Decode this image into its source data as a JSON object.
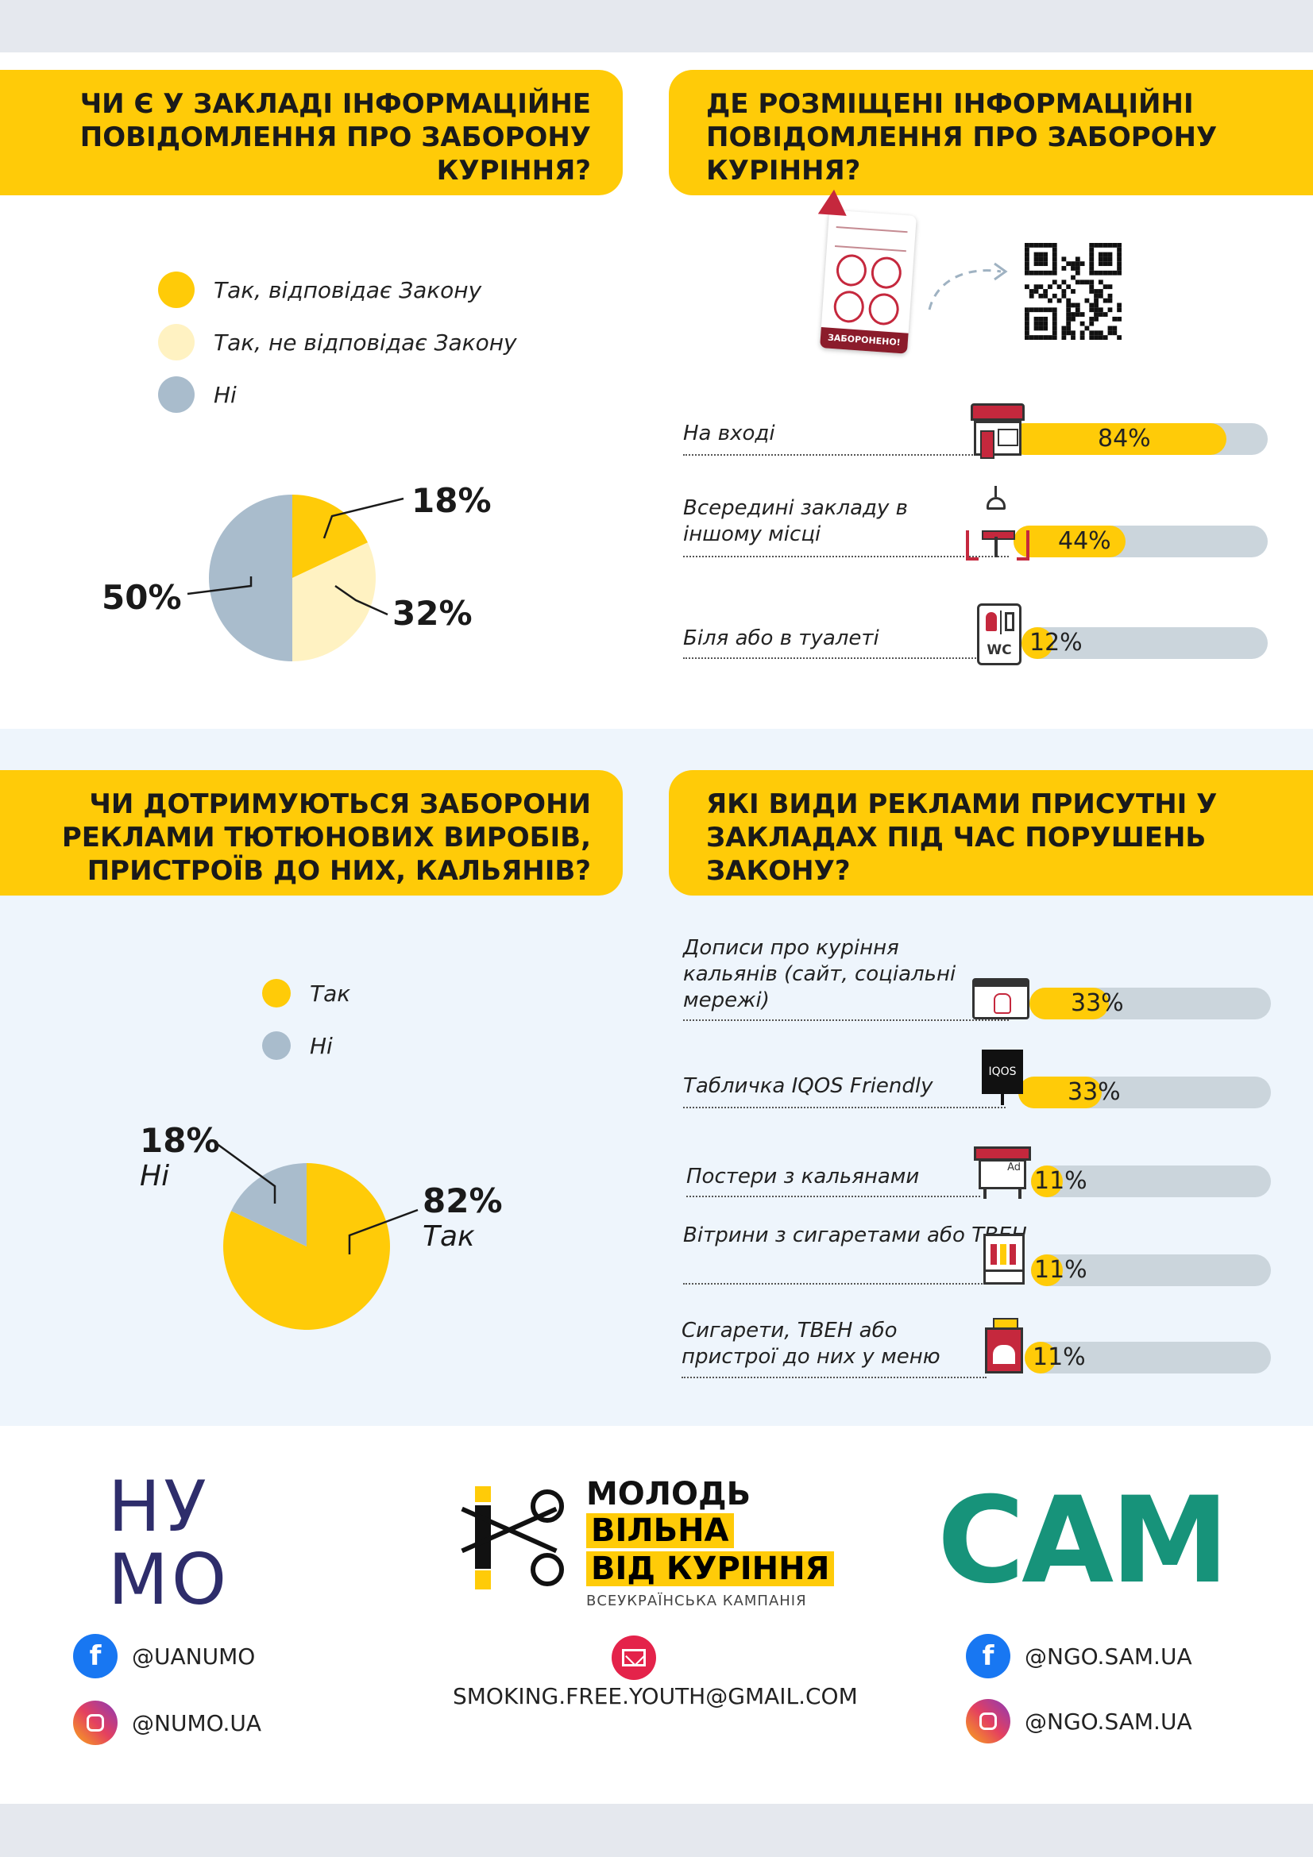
{
  "colors": {
    "accent": "#ffcb08",
    "light_yellow": "#fff2c2",
    "grey_blue": "#a9bccc",
    "track": "#cbd5dc",
    "nymo_navy": "#2e2d6b",
    "sam_green": "#17937a"
  },
  "q1": {
    "title": "ЧИ Є У ЗАКЛАДІ ІНФОРМАЦІЙНЕ ПОВІДОМЛЕННЯ ПРО ЗАБОРОНУ КУРІННЯ?",
    "legend": [
      {
        "label": "Так, відповідає Закону",
        "color": "#ffcb08"
      },
      {
        "label": "Так, не відповідає Закону",
        "color": "#fff2c2"
      },
      {
        "label": "Ні",
        "color": "#a9bccc"
      }
    ],
    "labels": [
      "18%",
      "32%",
      "50%"
    ]
  },
  "q2": {
    "title": "ДЕ РОЗМІЩЕНІ ІНФОРМАЦІЙНІ ПОВІДОМЛЕННЯ ПРО ЗАБОРОНУ КУРІННЯ?",
    "sign_text": "ЗАБОРОНЕНО!",
    "bars": [
      {
        "label": "На вході",
        "value_label": "84%"
      },
      {
        "label": "Всередині закладу в іншому місці",
        "value_label": "44%"
      },
      {
        "label": "Біля або в туалеті",
        "value_label": "12%"
      }
    ],
    "wc_text": "WC"
  },
  "q3": {
    "title": "ЧИ ДОТРИМУЮТЬСЯ ЗАБОРОНИ РЕКЛАМИ ТЮТЮНОВИХ ВИРОБІВ, ПРИСТРОЇВ ДО НИХ, КАЛЬЯНІВ?",
    "legend": [
      {
        "label": "Так",
        "color": "#ffcb08"
      },
      {
        "label": "Ні",
        "color": "#a9bccc"
      }
    ],
    "labels": [
      {
        "pct": "18%",
        "sub": "Ні"
      },
      {
        "pct": "82%",
        "sub": "Так"
      }
    ]
  },
  "q4": {
    "title": "ЯКІ ВИДИ РЕКЛАМИ ПРИСУТНІ У ЗАКЛАДАХ ПІД ЧАС ПОРУШЕНЬ ЗАКОНУ?",
    "bars": [
      {
        "label": "Дописи про куріння кальянів (сайт, соціальні мережі)",
        "value_label": "33%"
      },
      {
        "label": "Табличка IQOS Friendly",
        "value_label": "33%"
      },
      {
        "label": "Постери з кальянами",
        "value_label": "11%"
      },
      {
        "label": "Вітрини з сигаретами або ТВЕН",
        "value_label": "11%"
      },
      {
        "label": "Сигарети, ТВЕН або пристрої до них у меню",
        "value_label": "11%"
      }
    ],
    "iqos_text": "IQOS",
    "ad_text": "Ad"
  },
  "chart_data": [
    {
      "type": "pie",
      "categories": [
        "Так, відповідає Закону",
        "Так, не відповідає Закону",
        "Ні"
      ],
      "values": [
        18,
        32,
        50
      ],
      "title": "ЧИ Є У ЗАКЛАДІ ІНФОРМАЦІЙНЕ ПОВІДОМЛЕННЯ ПРО ЗАБОРОНУ КУРІННЯ?",
      "legend": "top-left"
    },
    {
      "type": "bar",
      "orientation": "horizontal",
      "categories": [
        "На вході",
        "Всередині закладу в іншому місці",
        "Біля або в туалеті"
      ],
      "values": [
        84,
        44,
        12
      ],
      "xlim": [
        0,
        100
      ],
      "title": "ДЕ РОЗМІЩЕНІ ІНФОРМАЦІЙНІ ПОВІДОМЛЕННЯ ПРО ЗАБОРОНУ КУРІННЯ?"
    },
    {
      "type": "pie",
      "categories": [
        "Так",
        "Ні"
      ],
      "values": [
        82,
        18
      ],
      "title": "ЧИ ДОТРИМУЮТЬСЯ ЗАБОРОНИ РЕКЛАМИ ТЮТЮНОВИХ ВИРОБІВ, ПРИСТРОЇВ ДО НИХ, КАЛЬЯНІВ?",
      "legend": "top-left"
    },
    {
      "type": "bar",
      "orientation": "horizontal",
      "categories": [
        "Дописи про куріння кальянів (сайт, соціальні мережі)",
        "Табличка IQOS Friendly",
        "Постери з кальянами",
        "Вітрини з сигаретами або ТВЕН",
        "Сигарети, ТВЕН або пристрої до них у меню"
      ],
      "values": [
        33,
        33,
        11,
        11,
        11
      ],
      "xlim": [
        0,
        100
      ],
      "title": "ЯКІ ВИДИ РЕКЛАМИ ПРИСУТНІ У ЗАКЛАДАХ ПІД ЧАС ПОРУШЕНЬ ЗАКОНУ?"
    }
  ],
  "footer": {
    "nymo_logo": [
      "НУ",
      "МО"
    ],
    "nymo_fb": "@UANUMO",
    "nymo_ig": "@NUMO.UA",
    "campaign": {
      "line1": "МОЛОДЬ",
      "line2": "ВІЛЬНА",
      "line3": "ВІД КУРІННЯ",
      "sub": "ВСЕУКРАЇНСЬКА КАМПАНІЯ"
    },
    "email": "SMOKING.FREE.YOUTH@GMAIL.COM",
    "sam_logo": "САМ",
    "sam_fb": "@NGO.SAM.UA",
    "sam_ig": "@NGO.SAM.UA"
  }
}
